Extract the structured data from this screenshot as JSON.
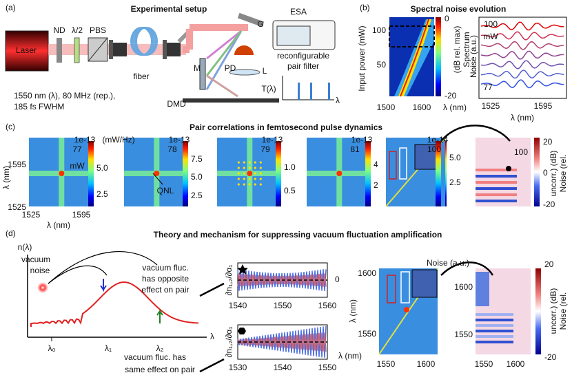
{
  "a": {
    "label": "(a)",
    "title": "Experimental setup",
    "laser": "Laser",
    "components": [
      "ND",
      "λ/2",
      "PBS",
      "fiber",
      "M",
      "G",
      "ESA",
      "PD",
      "L",
      "DMD"
    ],
    "filter": [
      "reconfigurable",
      "pair filter"
    ],
    "transmission": "T(λ)",
    "axis": "λ",
    "source": [
      "1550 nm (λ), 80 MHz (rep.),",
      "185 fs FWHM"
    ]
  },
  "b": {
    "label": "(b)",
    "title": "Spectral noise evolution",
    "map": {
      "ylabel": "Input power (mW)",
      "yticks": [
        "100",
        "50"
      ],
      "xticks": [
        "1500",
        "1600"
      ],
      "xlabel": "λ (nm)",
      "colorbar_ticks": [
        "0",
        "-20"
      ],
      "colorbar_label": [
        "Spectrum",
        "(dB rel. max)"
      ]
    },
    "traces": {
      "top": [
        "100",
        "mW"
      ],
      "bottom": "77",
      "ylabel": "Noise (a.u.)",
      "xticks": [
        "1525",
        "1595"
      ],
      "xlabel": "λ (nm)"
    }
  },
  "c": {
    "label": "(c)",
    "title": "Pair correlations in femtosecond pulse dynamics",
    "ylabel": "λ (nm)",
    "yticks": [
      "1595",
      "1525"
    ],
    "xticks": [
      "1525",
      "1595"
    ],
    "xlabel": "λ (nm)",
    "unit": "(mW/Hz)",
    "maps": [
      {
        "power": [
          "77",
          "mW"
        ],
        "scale": "1e-13",
        "colorbar_ticks": [
          "5.0",
          "2.5"
        ]
      },
      {
        "power": [
          "78"
        ],
        "note": "QNL",
        "scale": "1e-13",
        "colorbar_ticks": [
          "7.5",
          "5.0",
          "2.5"
        ]
      },
      {
        "power": [
          "79"
        ],
        "scale": "1e-13",
        "colorbar_ticks": [
          "1.0",
          "0.5"
        ]
      },
      {
        "power": [
          "81"
        ],
        "scale": "1e-13",
        "colorbar_ticks": [
          "4",
          "2"
        ]
      },
      {
        "power": [
          "100"
        ],
        "scale": "1e-14",
        "colorbar_ticks": [
          "5.0",
          "2.5"
        ]
      }
    ],
    "uncorrelated": {
      "power": "100",
      "colorbar_ticks": [
        "20",
        "0",
        "-20"
      ],
      "colorbar_label": [
        "Noise (rel.",
        "uncorr.) (dB)"
      ]
    }
  },
  "d": {
    "label": "(d)",
    "title": "Theory and mechanism for suppressing vacuum fluctuation amplification",
    "schematic": {
      "ylabel": "n(λ)",
      "source": [
        "vacuum",
        "noise"
      ],
      "opposite": [
        "vacuum fluc.",
        "has opposite",
        "effect on pair"
      ],
      "same": [
        "vacuum fluc. has",
        "same effect on pair"
      ],
      "wavelengths": [
        "λ₀",
        "λ₁",
        "λ₂"
      ],
      "axis": "λ"
    },
    "derivatives": {
      "ylabel": "∂n₁,₂/∂α₁",
      "top": {
        "ytick": "0",
        "xticks": [
          "1540",
          "1550",
          "1560"
        ]
      },
      "bottom": {
        "xticks": [
          "1530",
          "1540",
          "1550"
        ],
        "xlabel": "λ (nm)"
      }
    },
    "maps": {
      "label": "Noise (a.u.)",
      "ylabel": "λ (nm)",
      "yticks": [
        "1600",
        "1550"
      ],
      "xticks": [
        "1550",
        "1600"
      ],
      "uncorrelated": {
        "yticks": [
          "1600",
          "1550"
        ],
        "xticks": [
          "1550",
          "1600"
        ],
        "colorbar_ticks": [
          "20",
          "-20"
        ],
        "colorbar_label": [
          "Noise (rel.",
          "uncorr.) (dB)"
        ]
      }
    }
  }
}
